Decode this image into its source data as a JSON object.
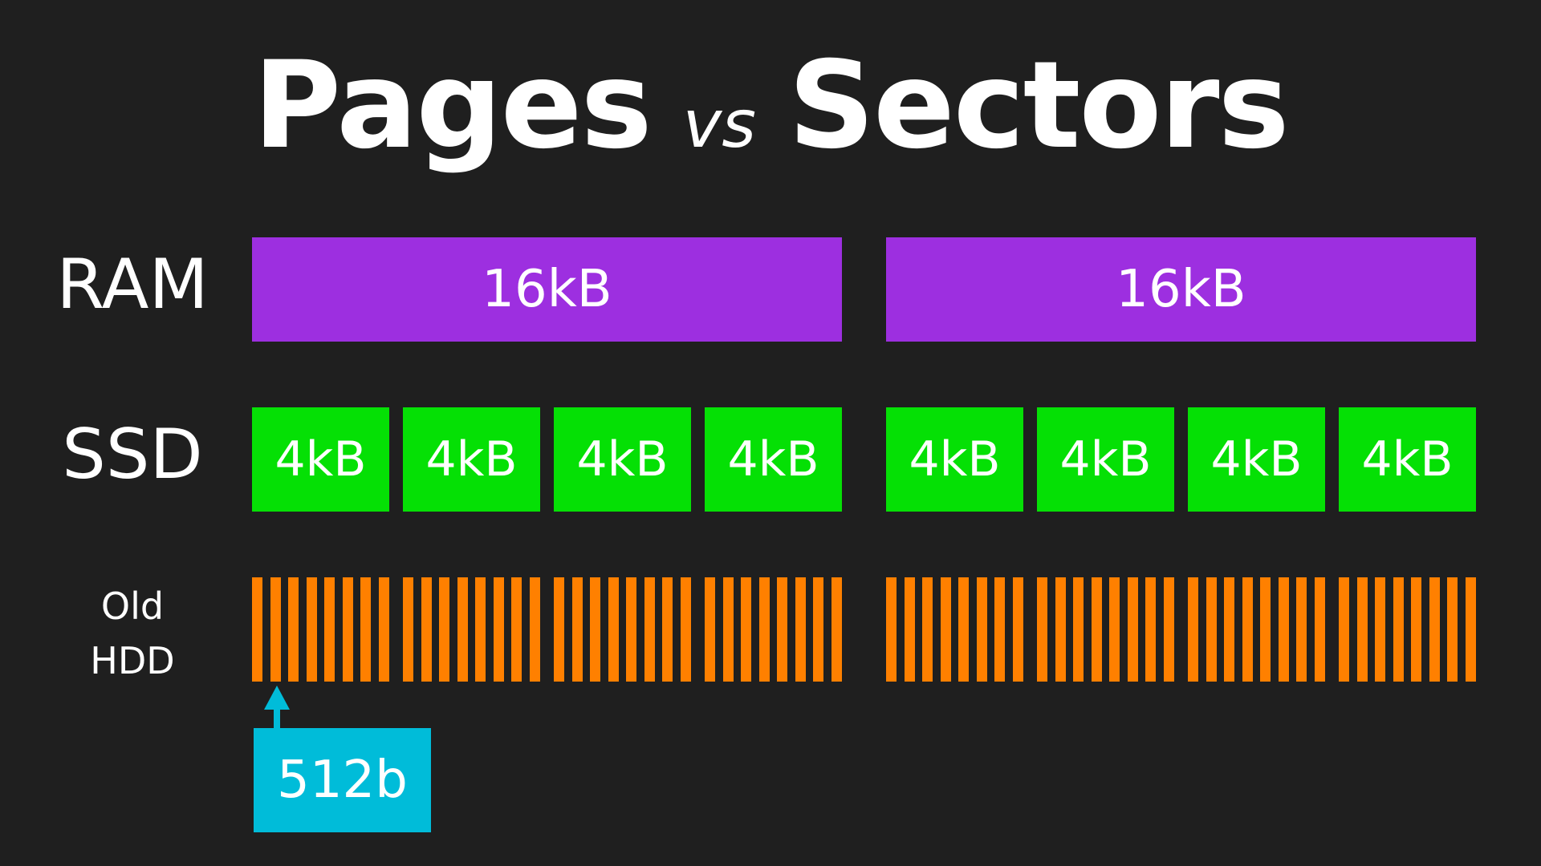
{
  "title": {
    "left_word": "Pages",
    "vs": "vs",
    "right_word": "Sectors"
  },
  "rows": {
    "ram": {
      "label": "RAM",
      "blocks": [
        "16kB",
        "16kB"
      ]
    },
    "ssd": {
      "label": "SSD",
      "blocks": [
        "4kB",
        "4kB",
        "4kB",
        "4kB",
        "4kB",
        "4kB",
        "4kB",
        "4kB"
      ]
    },
    "hdd": {
      "label_line1": "Old",
      "label_line2": "HDD",
      "sector_count": 64
    }
  },
  "callout": {
    "label": "512b"
  },
  "colors": {
    "background": "#1f1f1f",
    "ram": "#9d2fe0",
    "ssd": "#05e005",
    "hdd": "#ff8000",
    "callout": "#00bcd9",
    "text": "#ffffff"
  },
  "icons": {
    "pointer": "arrow-up-icon"
  }
}
